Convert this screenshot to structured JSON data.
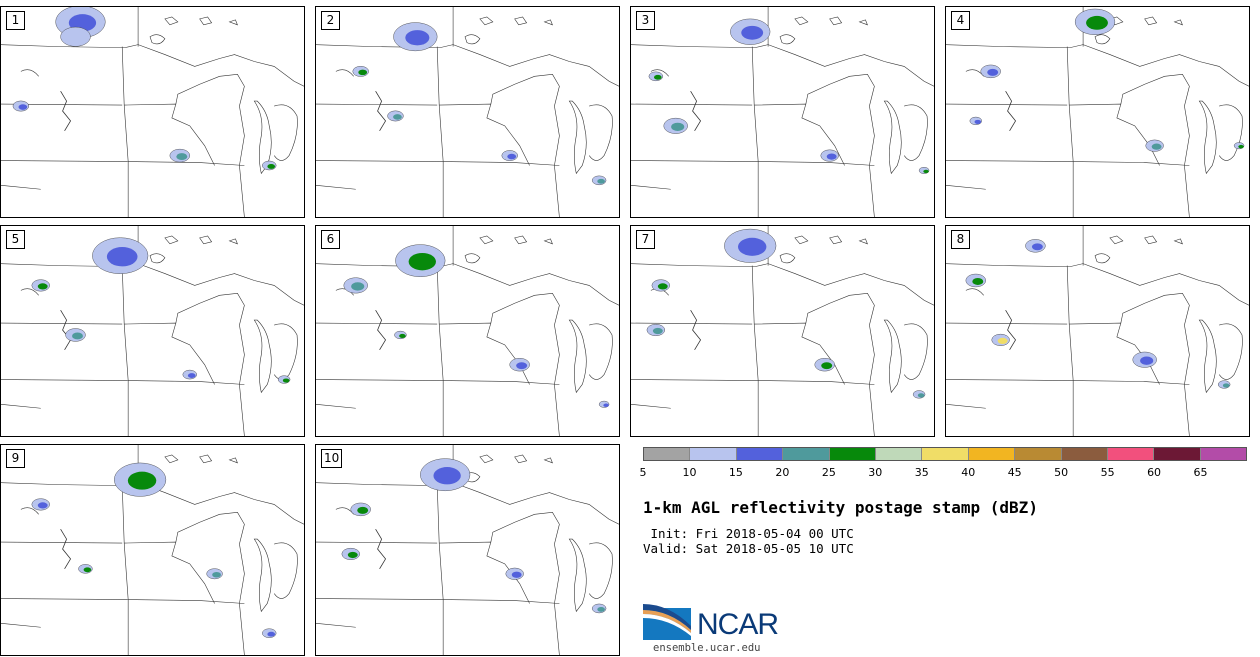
{
  "panels": [
    {
      "label": "1"
    },
    {
      "label": "2"
    },
    {
      "label": "3"
    },
    {
      "label": "4"
    },
    {
      "label": "5"
    },
    {
      "label": "6"
    },
    {
      "label": "7"
    },
    {
      "label": "8"
    },
    {
      "label": "9"
    },
    {
      "label": "10"
    }
  ],
  "colorbar": {
    "colors": [
      "#a3a3a3",
      "#b8c4ee",
      "#5361dc",
      "#4f9a9c",
      "#07890b",
      "#bfd9b9",
      "#f0dd67",
      "#f2b521",
      "#b98a33",
      "#8b5c3e",
      "#f2507d",
      "#6c1835",
      "#b34ca8"
    ],
    "ticks": [
      "5",
      "10",
      "15",
      "20",
      "25",
      "30",
      "35",
      "40",
      "45",
      "50",
      "55",
      "60",
      "65"
    ]
  },
  "title": "1-km AGL reflectivity postage stamp (dBZ)",
  "init": " Init: Fri 2018-05-04 00 UTC",
  "valid": "Valid: Sat 2018-05-05 10 UTC",
  "logo": {
    "text": "NCAR",
    "url": "ensemble.ucar.edu"
  }
}
